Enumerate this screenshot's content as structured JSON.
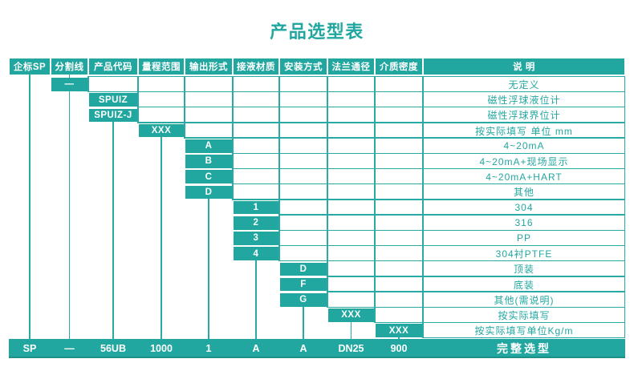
{
  "title": "产品选型表",
  "colors": {
    "teal": "#22a7a0",
    "grid": "#2aaaa4"
  },
  "table": {
    "headers": [
      "企标SP",
      "分割线",
      "产品代码",
      "量程范围",
      "输出形式",
      "接液材质",
      "安装方式",
      "法兰通径",
      "介质密度",
      "说  明"
    ],
    "rows": [
      {
        "col": 2,
        "value": "—",
        "desc": "无定义"
      },
      {
        "col": 3,
        "value": "SPUIZ",
        "desc": "磁性浮球液位计"
      },
      {
        "col": 3,
        "value": "SPUIZ-J",
        "desc": "磁性浮球界位计"
      },
      {
        "col": 4,
        "value": "XXX",
        "desc": "按实际填写 单位 mm"
      },
      {
        "col": 5,
        "value": "A",
        "desc": "4~20mA"
      },
      {
        "col": 5,
        "value": "B",
        "desc": "4~20mA+现场显示"
      },
      {
        "col": 5,
        "value": "C",
        "desc": "4~20mA+HART"
      },
      {
        "col": 5,
        "value": "D",
        "desc": "其他"
      },
      {
        "col": 6,
        "value": "1",
        "desc": "304"
      },
      {
        "col": 6,
        "value": "2",
        "desc": "316"
      },
      {
        "col": 6,
        "value": "3",
        "desc": "PP"
      },
      {
        "col": 6,
        "value": "4",
        "desc": "304衬PTFE"
      },
      {
        "col": 7,
        "value": "D",
        "desc": "顶装"
      },
      {
        "col": 7,
        "value": "F",
        "desc": "底装"
      },
      {
        "col": 7,
        "value": "G",
        "desc": "其他(需说明)"
      },
      {
        "col": 8,
        "value": "XXX",
        "desc": "按实际填写"
      },
      {
        "col": 9,
        "value": "XXX",
        "desc": "按实际填写单位Kg/m"
      }
    ],
    "summary": {
      "values": [
        "SP",
        "—",
        "56UB",
        "1000",
        "1",
        "A",
        "A",
        "DN25",
        "900"
      ],
      "label": "完整选型"
    }
  }
}
